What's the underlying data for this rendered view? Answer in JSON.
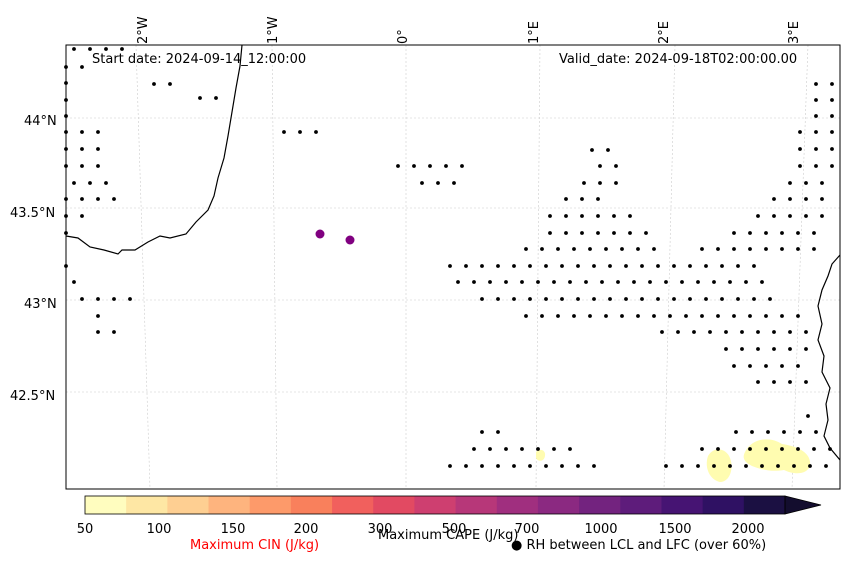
{
  "map": {
    "start_date": "Start date: 2024-09-14_12:00:00",
    "valid_date": "Valid_date: 2024-09-18T02:00:00.00",
    "lon_labels": [
      "2°W",
      "1°W",
      "0°",
      "1°E",
      "2°E",
      "3°E"
    ],
    "lat_labels": [
      "44°N",
      "43.5°N",
      "43°N",
      "42.5°N"
    ],
    "grid": true,
    "coastline_color": "#000000",
    "cin_marker_color": "#800080",
    "fill_color": "#fffcb0"
  },
  "colorbar": {
    "ticks": [
      "50",
      "100",
      "150",
      "200",
      "300",
      "500",
      "700",
      "1000",
      "1500",
      "2000"
    ],
    "colors": [
      "#fffdbf",
      "#fee7a4",
      "#fecf92",
      "#feb47e",
      "#fd9a6a",
      "#f9805c",
      "#f1605d",
      "#e24a62",
      "#ce3f70",
      "#b73779",
      "#a02f7f",
      "#8b2981",
      "#73237f",
      "#5e1c7b",
      "#461473",
      "#2f1163",
      "#1b1042"
    ],
    "cape_label": "Maximum CAPE (J/kg)",
    "cin_label": "Maximum CIN (J/kg)",
    "cin_label_color": "#ff0000",
    "rh_label": "● RH between LCL and LFC (over 60%)"
  }
}
